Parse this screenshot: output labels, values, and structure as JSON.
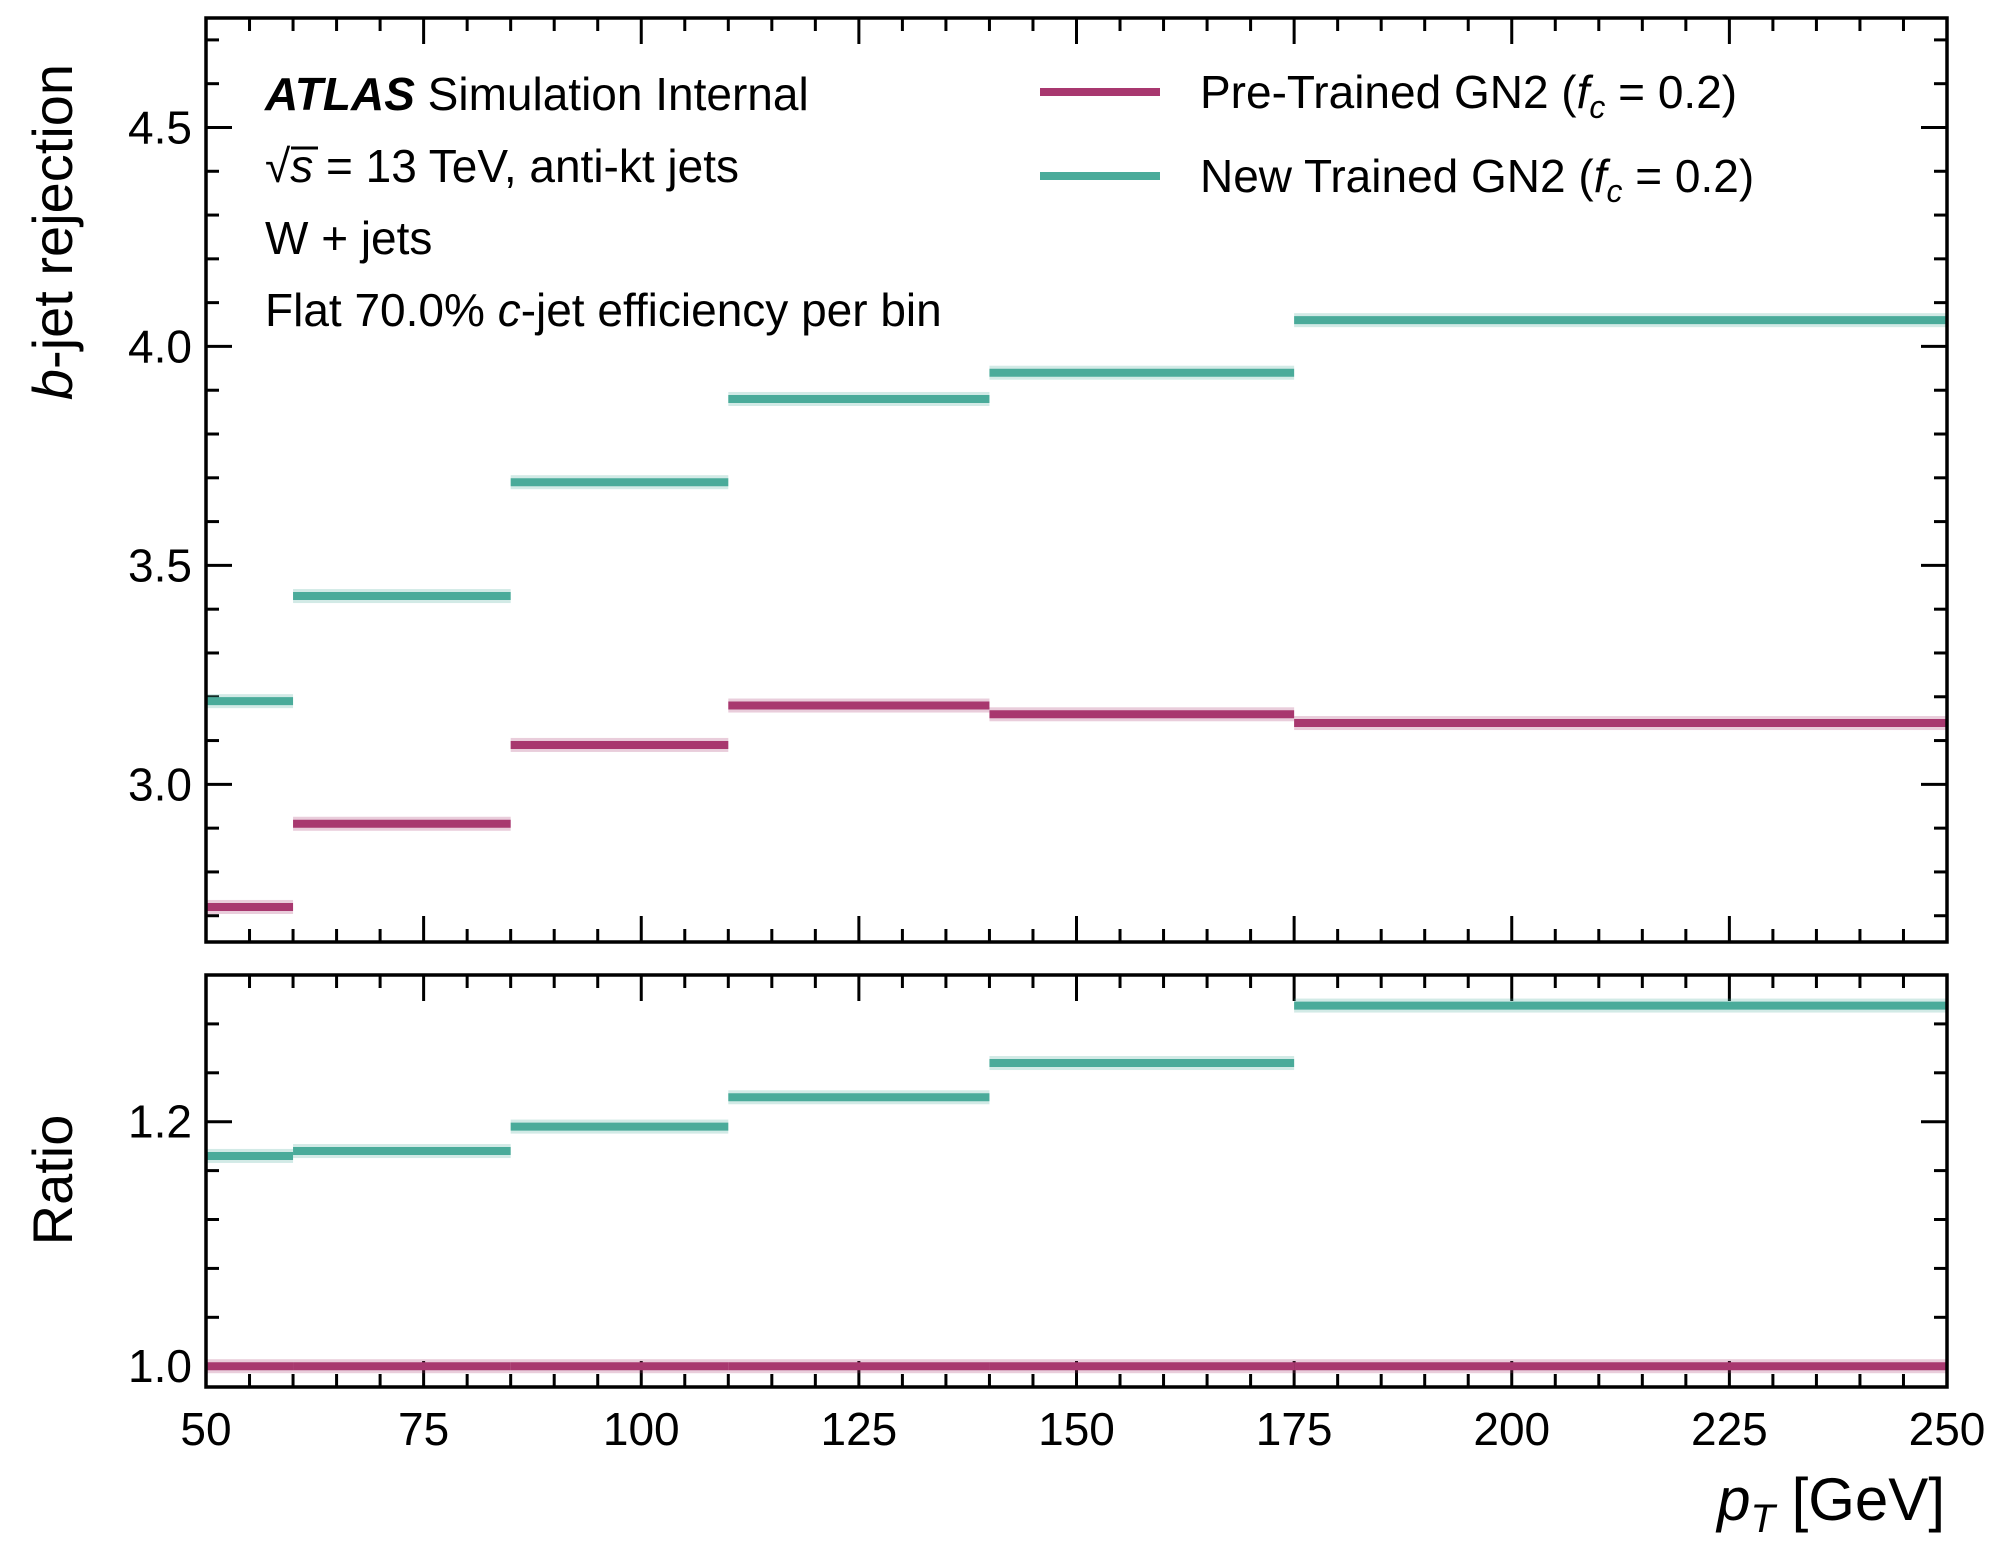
{
  "chart_data": {
    "type": "step",
    "x_edges": [
      50,
      60,
      85,
      110,
      140,
      175,
      250
    ],
    "xlim": [
      50,
      250
    ],
    "x_ticks": [
      "50",
      "75",
      "100",
      "125",
      "150",
      "175",
      "200",
      "225",
      "250"
    ],
    "xlabel_main": "p",
    "xlabel_sub": "T",
    "xlabel_unit": " [GeV]",
    "panels": [
      {
        "name": "main",
        "ylabel_italic": "b",
        "ylabel_rest": "-jet rejection",
        "ylim": [
          2.64,
          4.75
        ],
        "y_ticks": [
          "3.0",
          "3.5",
          "4.0",
          "4.5"
        ],
        "series": [
          {
            "name": "Pre-Trained GN2 (f_c = 0.2)",
            "color": "#a8386f",
            "values": [
              2.72,
              2.91,
              3.09,
              3.18,
              3.16,
              3.14
            ]
          },
          {
            "name": "New Trained GN2 (f_c = 0.2)",
            "color": "#4aab9a",
            "values": [
              3.19,
              3.43,
              3.69,
              3.88,
              3.94,
              4.06
            ]
          }
        ]
      },
      {
        "name": "ratio",
        "ylabel": "Ratio",
        "ylim": [
          0.983,
          1.32
        ],
        "y_ticks": [
          "1.0",
          "1.2"
        ],
        "series": [
          {
            "name": "Pre-Trained GN2 (f_c = 0.2)",
            "color": "#a8386f",
            "values": [
              1.0,
              1.0,
              1.0,
              1.0,
              1.0,
              1.0
            ]
          },
          {
            "name": "New Trained GN2 (f_c = 0.2)",
            "color": "#4aab9a",
            "values": [
              1.172,
              1.176,
              1.196,
              1.22,
              1.248,
              1.295
            ]
          }
        ]
      }
    ],
    "annotations": {
      "experiment": "ATLAS",
      "label": " Simulation Internal",
      "sqrt": "√",
      "energy_s": "s",
      "energy_rest": " = 13 TeV, anti-kt jets",
      "sample": "W + jets",
      "wp_prefix": "Flat 70.0% ",
      "wp_italic": "c",
      "wp_suffix": "-jet efficiency per bin"
    },
    "legend": {
      "position": "top-right",
      "entries": [
        {
          "pre": "Pre-Trained GN2 (",
          "f": "f",
          "sub": "c",
          "post": " = 0.2)",
          "color": "#a8386f"
        },
        {
          "pre": "New Trained GN2 (",
          "f": "f",
          "sub": "c",
          "post": " = 0.2)",
          "color": "#4aab9a"
        }
      ]
    }
  }
}
